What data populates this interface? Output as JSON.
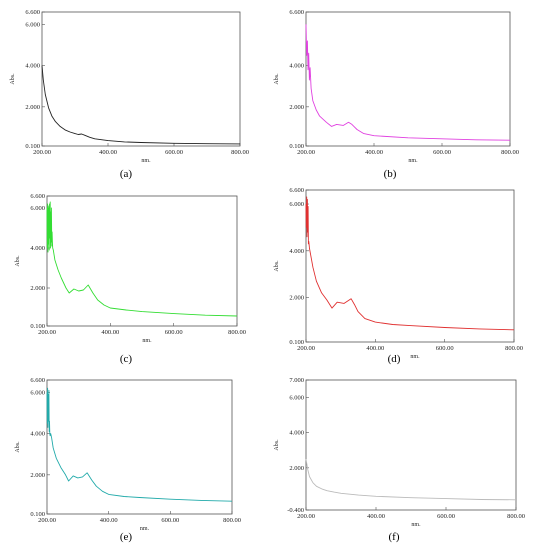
{
  "chart_data": [
    {
      "type": "line",
      "panel_label": "a",
      "xlabel": "nm.",
      "ylabel": "Abs.",
      "xlim": [
        200,
        800
      ],
      "ylim": [
        0.1,
        6.6
      ],
      "xticks": [
        "200.00",
        "400.00",
        "600.00",
        "800.00"
      ],
      "xtick_values": [
        200,
        400,
        600,
        800
      ],
      "yticks": [
        "6.600",
        "6.000",
        "4.000",
        "2.000",
        "0.100"
      ],
      "ytick_values": [
        6.6,
        6.0,
        4.0,
        2.0,
        0.1
      ],
      "color": "#222222",
      "series": [
        {
          "x": [
            200,
            204,
            210,
            220,
            230,
            240,
            255,
            270,
            285,
            300,
            310,
            320,
            330,
            345,
            360,
            400,
            450,
            500,
            600,
            700,
            800
          ],
          "y": [
            4.0,
            3.3,
            2.6,
            1.95,
            1.55,
            1.3,
            1.05,
            0.88,
            0.78,
            0.7,
            0.66,
            0.68,
            0.62,
            0.52,
            0.45,
            0.36,
            0.3,
            0.27,
            0.23,
            0.21,
            0.2
          ]
        }
      ]
    },
    {
      "type": "line",
      "panel_label": "b",
      "xlabel": "nm.",
      "ylabel": "Abs.",
      "xlim": [
        200,
        800
      ],
      "ylim": [
        0.1,
        6.6
      ],
      "xticks": [
        "200.00",
        "400.00",
        "600.00",
        "800.00"
      ],
      "xtick_values": [
        200,
        400,
        600,
        800
      ],
      "yticks": [
        "6.600",
        "4.000",
        "2.000",
        "0.100"
      ],
      "ytick_values": [
        6.6,
        4.0,
        2.0,
        0.1
      ],
      "color": "#e040e0",
      "series": [
        {
          "x": [
            200,
            202,
            204,
            206,
            208,
            210,
            212,
            215,
            220,
            230,
            240,
            260,
            275,
            290,
            310,
            325,
            335,
            350,
            370,
            400,
            500,
            600,
            700,
            800
          ],
          "y": [
            6.0,
            4.5,
            5.2,
            3.8,
            4.6,
            3.3,
            3.9,
            2.9,
            2.3,
            1.85,
            1.55,
            1.25,
            1.05,
            1.15,
            1.1,
            1.25,
            1.15,
            0.9,
            0.7,
            0.6,
            0.5,
            0.45,
            0.4,
            0.38
          ]
        }
      ]
    },
    {
      "type": "line",
      "panel_label": "c",
      "xlabel": "nm.",
      "ylabel": "Abs.",
      "xlim": [
        200,
        800
      ],
      "ylim": [
        0.1,
        6.6
      ],
      "xticks": [
        "200.00",
        "400.00",
        "600.00",
        "800.00"
      ],
      "xtick_values": [
        200,
        400,
        600,
        800
      ],
      "yticks": [
        "6.600",
        "6.000",
        "4.000",
        "2.000",
        "0.100"
      ],
      "ytick_values": [
        6.6,
        6.0,
        4.0,
        2.0,
        0.1
      ],
      "color": "#33dd33",
      "series": [
        {
          "x": [
            200,
            201,
            202,
            203,
            204,
            205,
            206,
            207,
            208,
            209,
            210,
            211,
            212,
            213,
            214,
            215,
            216,
            217,
            218,
            220,
            225,
            235,
            245,
            260,
            270,
            285,
            300,
            315,
            330,
            345,
            360,
            380,
            400,
            450,
            500,
            600,
            700,
            800
          ],
          "y": [
            6.0,
            4.0,
            6.2,
            3.8,
            6.1,
            4.2,
            6.0,
            3.9,
            6.2,
            4.5,
            6.3,
            4.0,
            5.8,
            4.3,
            6.0,
            4.1,
            4.8,
            4.3,
            4.0,
            3.9,
            3.4,
            2.9,
            2.5,
            2.0,
            1.75,
            1.95,
            1.85,
            1.9,
            2.15,
            1.75,
            1.4,
            1.15,
            1.0,
            0.9,
            0.82,
            0.72,
            0.64,
            0.6
          ]
        }
      ]
    },
    {
      "type": "line",
      "panel_label": "d",
      "xlabel": "nm.",
      "ylabel": "Abs.",
      "xlim": [
        200,
        800
      ],
      "ylim": [
        0.1,
        6.6
      ],
      "xticks": [
        "200.00",
        "400.00",
        "600.00",
        "800.00"
      ],
      "xtick_values": [
        200,
        400,
        600,
        800
      ],
      "yticks": [
        "6.600",
        "6.000",
        "4.000",
        "2.000",
        "0.100"
      ],
      "ytick_values": [
        6.6,
        6.0,
        4.0,
        2.0,
        0.1
      ],
      "color": "#e03030",
      "series": [
        {
          "x": [
            200,
            201,
            202,
            203,
            204,
            205,
            206,
            207,
            208,
            210,
            215,
            220,
            230,
            245,
            260,
            275,
            290,
            310,
            330,
            340,
            350,
            370,
            400,
            450,
            500,
            600,
            700,
            800
          ],
          "y": [
            6.0,
            5.0,
            6.3,
            4.6,
            6.2,
            4.8,
            5.9,
            4.3,
            4.4,
            4.1,
            3.7,
            3.3,
            2.7,
            2.2,
            1.9,
            1.55,
            1.8,
            1.75,
            1.95,
            1.7,
            1.4,
            1.1,
            0.95,
            0.85,
            0.8,
            0.72,
            0.66,
            0.62
          ]
        }
      ]
    },
    {
      "type": "line",
      "panel_label": "e",
      "xlabel": "nm.",
      "ylabel": "Abs.",
      "xlim": [
        200,
        800
      ],
      "ylim": [
        0.1,
        6.6
      ],
      "xticks": [
        "200.00",
        "400.00",
        "600.00",
        "800.00"
      ],
      "xtick_values": [
        200,
        400,
        600,
        800
      ],
      "yticks": [
        "6.600",
        "6.000",
        "4.000",
        "2.000",
        "0.100"
      ],
      "ytick_values": [
        6.6,
        6.0,
        4.0,
        2.0,
        0.1
      ],
      "color": "#22aaaa",
      "series": [
        {
          "x": [
            200,
            201,
            202,
            203,
            204,
            205,
            206,
            207,
            208,
            209,
            210,
            212,
            215,
            220,
            230,
            245,
            260,
            270,
            285,
            300,
            315,
            330,
            345,
            360,
            380,
            400,
            450,
            500,
            600,
            700,
            800
          ],
          "y": [
            6.0,
            4.5,
            6.2,
            4.3,
            5.9,
            4.6,
            6.1,
            4.1,
            4.6,
            4.0,
            3.9,
            4.0,
            3.8,
            3.3,
            2.8,
            2.35,
            2.0,
            1.7,
            1.95,
            1.85,
            1.9,
            2.1,
            1.75,
            1.45,
            1.2,
            1.05,
            0.95,
            0.9,
            0.82,
            0.76,
            0.72
          ]
        }
      ]
    },
    {
      "type": "line",
      "panel_label": "f",
      "xlabel": "nm.",
      "ylabel": "Abs.",
      "xlim": [
        200,
        800
      ],
      "ylim": [
        -0.4,
        7.0
      ],
      "xticks": [
        "200.00",
        "400.00",
        "600.00",
        "800.00"
      ],
      "xtick_values": [
        200,
        400,
        600,
        800
      ],
      "yticks": [
        "7.000",
        "6.000",
        "4.000",
        "2.000",
        "-0.400"
      ],
      "ytick_values": [
        7.0,
        6.0,
        4.0,
        2.0,
        -0.4
      ],
      "color": "#bbbbbb",
      "series": [
        {
          "x": [
            200,
            205,
            210,
            220,
            230,
            245,
            260,
            280,
            300,
            350,
            400,
            500,
            600,
            700,
            800
          ],
          "y": [
            2.5,
            1.9,
            1.5,
            1.15,
            0.95,
            0.8,
            0.7,
            0.62,
            0.55,
            0.45,
            0.38,
            0.3,
            0.25,
            0.2,
            0.18
          ]
        }
      ]
    }
  ],
  "captions": [
    "(a)",
    "(b)",
    "(c)",
    "(d)",
    "(e)",
    "(f)"
  ]
}
